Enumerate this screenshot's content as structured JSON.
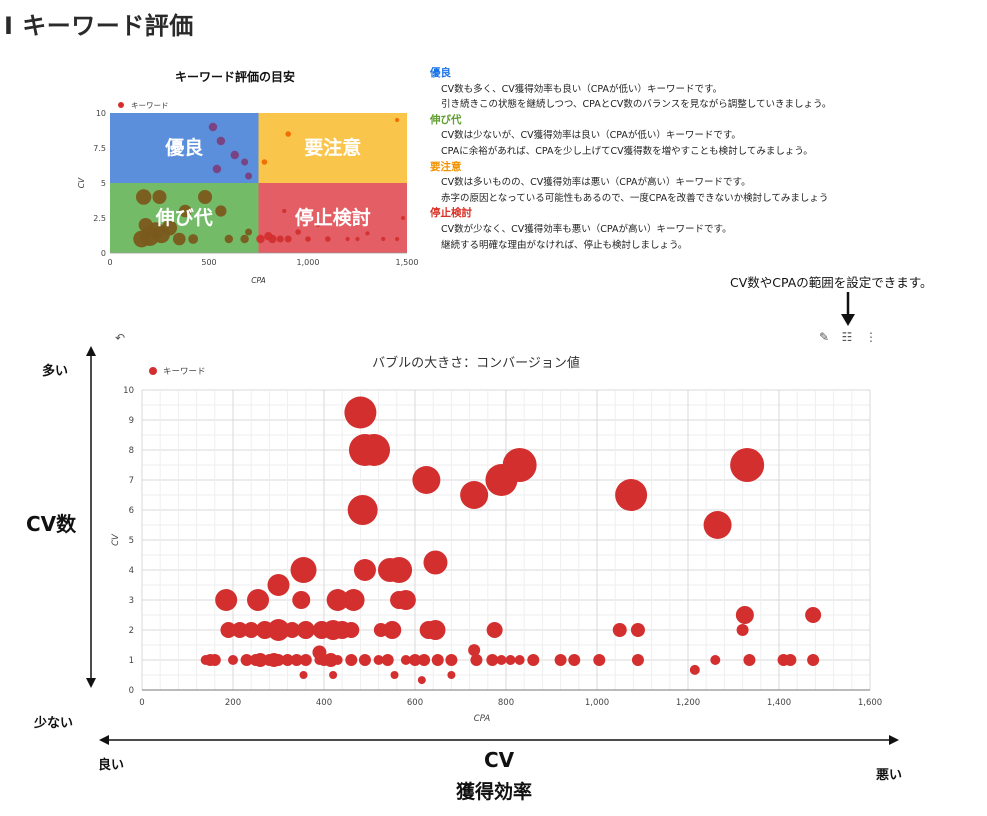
{
  "page": {
    "title": "I キーワード評価"
  },
  "hint": {
    "text": "CV数やCPAの範囲を設定できます。"
  },
  "legend_panel": [
    {
      "heading": "優良",
      "color": "#1a73e8",
      "lines": [
        "CV数も多く、CV獲得効率も良い（CPAが低い）キーワードです。",
        "引き続きこの状態を継続しつつ、CPAとCV数のバランスを見ながら調整していきましょう。"
      ]
    },
    {
      "heading": "伸び代",
      "color": "#5f9e2f",
      "lines": [
        "CV数は少ないが、CV獲得効率は良い（CPAが低い）キーワードです。",
        "CPAに余裕があれば、CPAを少し上げてCV獲得数を増やすことも検討してみましょう。"
      ]
    },
    {
      "heading": "要注意",
      "color": "#f09300",
      "lines": [
        "CV数は多いものの、CV獲得効率は悪い（CPAが高い）キーワードです。",
        "赤字の原因となっている可能性もあるので、一度CPAを改善できないか検討してみましょう"
      ]
    },
    {
      "heading": "停止検討",
      "color": "#d93025",
      "lines": [
        "CV数が少なく、CV獲得効率も悪い（CPAが高い）キーワードです。",
        "継続する明確な理由がなければ、停止も検討しましょう。"
      ]
    }
  ],
  "axis_notes": {
    "many": "多い",
    "few": "少ない",
    "cv_count": "CV数",
    "good": "良い",
    "bad": "悪い",
    "eff_cv": "CV",
    "eff_label": "獲得効率"
  },
  "toolbar": {
    "undo_icon": "undo-icon",
    "edit_icon": "pencil-icon",
    "filter_icon": "sliders-icon",
    "more_icon": "more-vert-icon"
  },
  "chart_data": [
    {
      "type": "scatter",
      "title": "キーワード評価の目安",
      "xlabel": "CPA",
      "ylabel": "CV",
      "legend": [
        "キーワード"
      ],
      "legend_position": "top-left",
      "xlim": [
        0,
        1500
      ],
      "ylim": [
        0,
        10
      ],
      "xticks": [
        "0",
        "500",
        "1,000",
        "1,500"
      ],
      "yticks": [
        "0",
        "2.5",
        "5",
        "7.5",
        "10"
      ],
      "quadrants": [
        {
          "label": "優良",
          "x": [
            0,
            750
          ],
          "y": [
            5,
            10
          ],
          "color": "#5b8edb"
        },
        {
          "label": "要注意",
          "x": [
            750,
            1500
          ],
          "y": [
            5,
            10
          ],
          "color": "#f9c54b"
        },
        {
          "label": "伸び代",
          "x": [
            0,
            750
          ],
          "y": [
            0,
            5
          ],
          "color": "#74bb68"
        },
        {
          "label": "停止検討",
          "x": [
            750,
            1500
          ],
          "y": [
            0,
            5
          ],
          "color": "#e35f65"
        }
      ],
      "points": [
        [
          160,
          1,
          12
        ],
        [
          200,
          1.2,
          14
        ],
        [
          230,
          1.6,
          12
        ],
        [
          180,
          2,
          10
        ],
        [
          260,
          1.3,
          12
        ],
        [
          300,
          1.8,
          11
        ],
        [
          350,
          1,
          9
        ],
        [
          420,
          1,
          7
        ],
        [
          170,
          4,
          11
        ],
        [
          250,
          4,
          10
        ],
        [
          380,
          3,
          9
        ],
        [
          480,
          4,
          10
        ],
        [
          560,
          3,
          8
        ],
        [
          600,
          1,
          6
        ],
        [
          680,
          1,
          6
        ],
        [
          700,
          1.5,
          5
        ],
        [
          520,
          9,
          6
        ],
        [
          540,
          6,
          6
        ],
        [
          630,
          7,
          6
        ],
        [
          680,
          6.5,
          5
        ],
        [
          560,
          8,
          6
        ],
        [
          700,
          5.5,
          5
        ],
        [
          820,
          1,
          6
        ],
        [
          860,
          1,
          5
        ],
        [
          900,
          1,
          5
        ],
        [
          950,
          1.5,
          4
        ],
        [
          1000,
          1,
          4
        ],
        [
          1100,
          1,
          4
        ],
        [
          1200,
          1,
          3
        ],
        [
          1300,
          1.4,
          3
        ],
        [
          1380,
          1,
          3
        ],
        [
          1450,
          1,
          3
        ],
        [
          1480,
          2.5,
          3
        ],
        [
          1050,
          2,
          3
        ],
        [
          1250,
          1,
          3
        ],
        [
          900,
          8.5,
          4
        ],
        [
          1450,
          9.5,
          3
        ],
        [
          780,
          6.5,
          4
        ],
        [
          880,
          3,
          3
        ],
        [
          1000,
          1,
          3
        ],
        [
          760,
          1,
          6
        ],
        [
          800,
          1.2,
          6
        ]
      ]
    },
    {
      "type": "scatter",
      "title": "バブルの大きさ：コンバージョン値",
      "xlabel": "CPA",
      "ylabel": "CV",
      "legend": [
        "キーワード"
      ],
      "legend_position": "top-left",
      "series_color": "#d32f2f",
      "xlim": [
        0,
        1600
      ],
      "ylim": [
        0,
        10
      ],
      "xticks": [
        "0",
        "200",
        "400",
        "600",
        "800",
        "1,000",
        "1,200",
        "1,400",
        "1,600"
      ],
      "yticks": [
        "0",
        "1",
        "2",
        "3",
        "4",
        "5",
        "6",
        "7",
        "8",
        "9",
        "10"
      ],
      "points": [
        [
          480,
          9.25,
          16
        ],
        [
          490,
          8,
          16
        ],
        [
          510,
          8,
          16
        ],
        [
          625,
          7,
          14
        ],
        [
          730,
          6.5,
          14
        ],
        [
          790,
          7,
          16
        ],
        [
          830,
          7.5,
          17
        ],
        [
          1075,
          6.5,
          16
        ],
        [
          1330,
          7.5,
          17
        ],
        [
          1265,
          5.5,
          14
        ],
        [
          485,
          6,
          15
        ],
        [
          355,
          4,
          13
        ],
        [
          490,
          4,
          11
        ],
        [
          545,
          4,
          12
        ],
        [
          565,
          4,
          13
        ],
        [
          645,
          4.25,
          12
        ],
        [
          185,
          3,
          11
        ],
        [
          255,
          3,
          11
        ],
        [
          300,
          3.5,
          11
        ],
        [
          350,
          3,
          9
        ],
        [
          430,
          3,
          11
        ],
        [
          465,
          3,
          11
        ],
        [
          565,
          3,
          9
        ],
        [
          580,
          3,
          10
        ],
        [
          190,
          2,
          8
        ],
        [
          215,
          2,
          8
        ],
        [
          240,
          2,
          8
        ],
        [
          270,
          2,
          9
        ],
        [
          300,
          2,
          11
        ],
        [
          330,
          2,
          8
        ],
        [
          360,
          2,
          9
        ],
        [
          395,
          2,
          9
        ],
        [
          420,
          2,
          10
        ],
        [
          440,
          2,
          9
        ],
        [
          460,
          2,
          8
        ],
        [
          525,
          2,
          7
        ],
        [
          550,
          2,
          9
        ],
        [
          630,
          2,
          9
        ],
        [
          645,
          2,
          10
        ],
        [
          775,
          2,
          8
        ],
        [
          1050,
          2,
          7
        ],
        [
          1090,
          2,
          7
        ],
        [
          1320,
          2,
          6
        ],
        [
          1325,
          2.5,
          9
        ],
        [
          1475,
          2.5,
          8
        ],
        [
          140,
          1,
          5
        ],
        [
          150,
          1,
          6
        ],
        [
          160,
          1,
          6
        ],
        [
          200,
          1,
          5
        ],
        [
          230,
          1,
          6
        ],
        [
          250,
          1,
          6
        ],
        [
          260,
          1,
          7
        ],
        [
          280,
          1,
          6
        ],
        [
          290,
          1,
          7
        ],
        [
          300,
          1,
          6
        ],
        [
          320,
          1,
          6
        ],
        [
          340,
          1,
          6
        ],
        [
          360,
          1,
          6
        ],
        [
          390,
          1,
          5
        ],
        [
          400,
          1,
          6
        ],
        [
          415,
          1,
          7
        ],
        [
          430,
          1,
          5
        ],
        [
          460,
          1,
          6
        ],
        [
          490,
          1,
          6
        ],
        [
          520,
          1,
          5
        ],
        [
          540,
          1,
          6
        ],
        [
          580,
          1,
          5
        ],
        [
          600,
          1,
          6
        ],
        [
          620,
          1,
          6
        ],
        [
          650,
          1,
          6
        ],
        [
          680,
          1,
          6
        ],
        [
          735,
          1,
          6
        ],
        [
          770,
          1,
          6
        ],
        [
          790,
          1,
          5
        ],
        [
          810,
          1,
          5
        ],
        [
          830,
          1,
          5
        ],
        [
          860,
          1,
          6
        ],
        [
          920,
          1,
          6
        ],
        [
          950,
          1,
          6
        ],
        [
          1005,
          1,
          6
        ],
        [
          1090,
          1,
          6
        ],
        [
          1215,
          0.67,
          5
        ],
        [
          1260,
          1,
          5
        ],
        [
          1335,
          1,
          6
        ],
        [
          1410,
          1,
          6
        ],
        [
          1425,
          1,
          6
        ],
        [
          1475,
          1,
          6
        ],
        [
          390,
          1.25,
          7
        ],
        [
          730,
          1.33,
          6
        ],
        [
          355,
          0.5,
          4
        ],
        [
          420,
          0.5,
          4
        ],
        [
          555,
          0.5,
          4
        ],
        [
          615,
          0.33,
          4
        ],
        [
          680,
          0.5,
          4
        ]
      ]
    }
  ]
}
